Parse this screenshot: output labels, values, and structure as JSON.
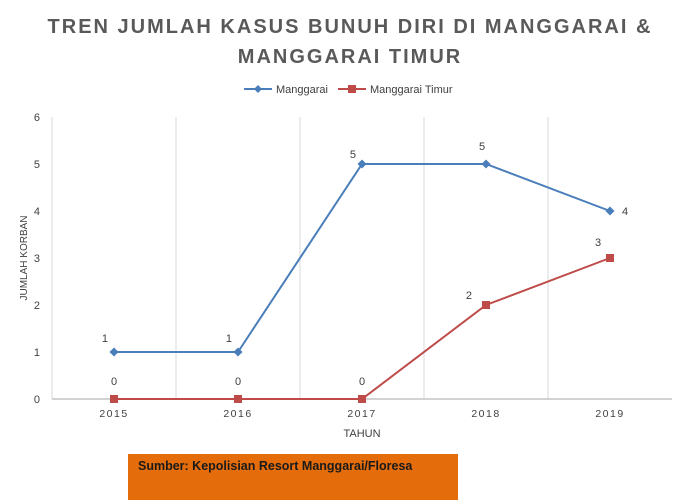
{
  "chart_data": {
    "type": "line",
    "title": "TREN JUMLAH KASUS BUNUH DIRI DI MANGGARAI & MANGGARAI TIMUR",
    "xlabel": "TAHUN",
    "ylabel": "JUMLAH KORBAN",
    "categories": [
      "2015",
      "2016",
      "2017",
      "2018",
      "2019"
    ],
    "ylim": [
      0,
      6
    ],
    "yticks": [
      "0",
      "1",
      "2",
      "3",
      "4",
      "5",
      "6"
    ],
    "grid": "vertical",
    "legend": "top-center",
    "series": [
      {
        "name": "Manggarai",
        "values": [
          1,
          1,
          5,
          5,
          4
        ],
        "color": "#4a7ebb",
        "marker": "diamond"
      },
      {
        "name": "Manggarai Timur",
        "values": [
          0,
          0,
          0,
          2,
          3
        ],
        "color": "#be4b48",
        "marker": "square"
      }
    ]
  },
  "source": "Sumber: Kepolisian Resort Manggarai/Floresa"
}
